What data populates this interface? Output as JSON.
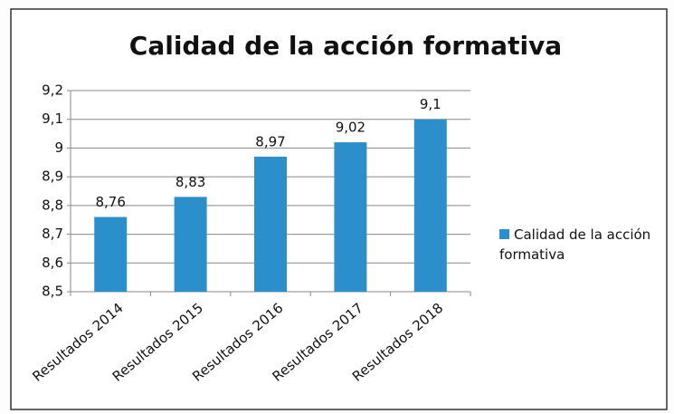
{
  "chart_data": {
    "type": "bar",
    "title": "Calidad de la acción formativa",
    "categories": [
      "Resultados 2014",
      "Resultados 2015",
      "Resultados 2016",
      "Resultados 2017",
      "Resultados 2018"
    ],
    "series": [
      {
        "name": "Calidad de la acción formativa",
        "color": "#2b8fcb",
        "values": [
          8.76,
          8.83,
          8.97,
          9.02,
          9.1
        ],
        "value_labels": [
          "8,76",
          "8,83",
          "8,97",
          "9,02",
          "9,1"
        ]
      }
    ],
    "ylim": [
      8.5,
      9.2
    ],
    "yticks": [
      {
        "value": 8.5,
        "label": "8,5"
      },
      {
        "value": 8.6,
        "label": "8,6"
      },
      {
        "value": 8.7,
        "label": "8,7"
      },
      {
        "value": 8.8,
        "label": "8,8"
      },
      {
        "value": 8.9,
        "label": "8,9"
      },
      9,
      {
        "value": 9.1,
        "label": "9,1"
      },
      {
        "value": 9.2,
        "label": "9,2"
      }
    ],
    "grid": true,
    "legend": "right"
  }
}
